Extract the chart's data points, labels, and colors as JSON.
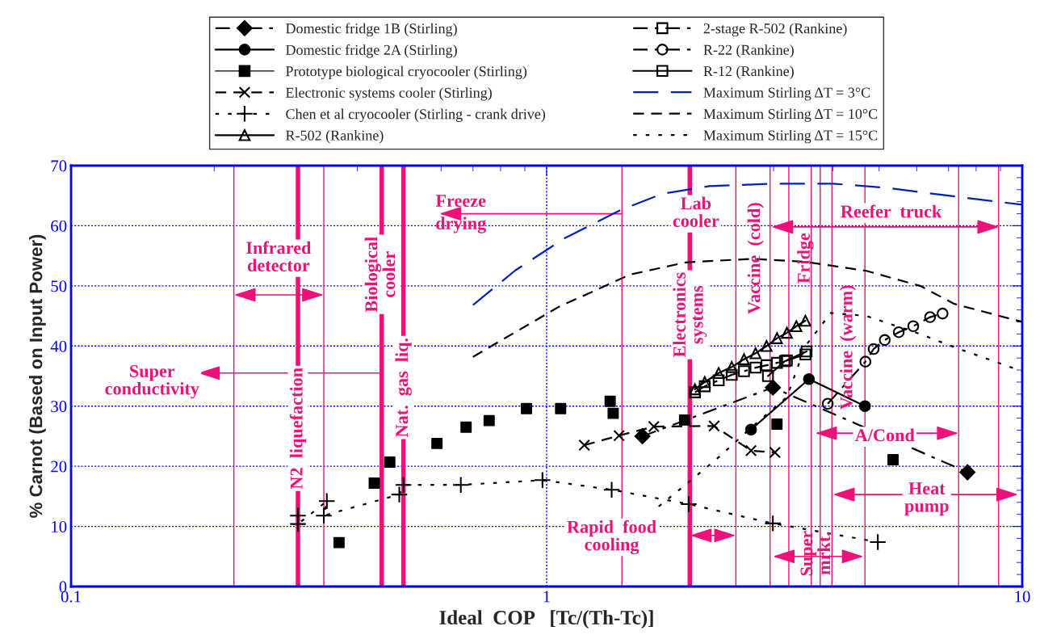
{
  "chart_data": {
    "type": "line",
    "xlabel": "Ideal  COP   [Tc/(Th-Tc)]",
    "ylabel": "% Carnot (Based on Input Power)",
    "log": "x",
    "xlim": [
      0.1,
      10
    ],
    "xticks": [
      0.1,
      1,
      10
    ],
    "ylim": [
      0,
      70
    ],
    "yticks": [
      0,
      10,
      20,
      30,
      40,
      50,
      60,
      70
    ],
    "grid": true,
    "legend": "top",
    "series": [
      {
        "name": "Domestic fridge 1B (Stirling)",
        "color": "#000000",
        "marker": "diamond",
        "line_style": "dashdot",
        "x": [
          1.59,
          2.99,
          7.67
        ],
        "values": [
          25.0,
          33.1,
          19.0
        ]
      },
      {
        "name": "Domestic fridge 2A (Stirling)",
        "color": "#000000",
        "marker": "circle",
        "line_style": "solid",
        "x": [
          2.69,
          3.56,
          4.67
        ],
        "values": [
          26.1,
          34.5,
          30.0
        ]
      },
      {
        "name": "Prototype biological cryocooler (Stirling)",
        "type": "scatter",
        "color": "#000000",
        "marker": "square",
        "x": [
          0.366,
          0.434,
          0.468,
          0.588,
          0.677,
          0.757,
          0.907,
          1.07,
          1.36,
          1.38,
          1.95,
          3.05,
          5.35
        ],
        "values": [
          7.3,
          17.2,
          20.7,
          23.8,
          26.5,
          27.6,
          29.6,
          29.6,
          30.8,
          28.8,
          27.7,
          27.0,
          21.1
        ]
      },
      {
        "name": "Electronic systems cooler (Stirling)",
        "color": "#000000",
        "marker": "cross",
        "line_style": "dashed",
        "x": [
          1.2,
          1.42,
          1.68,
          2.25,
          2.69,
          3.02
        ],
        "values": [
          23.5,
          25.1,
          26.6,
          26.7,
          22.6,
          22.3
        ]
      },
      {
        "name": "Chen et al cryocooler (Stirling - crank drive)",
        "color": "#000000",
        "marker": "plus",
        "line_style": "dotted",
        "x": [
          0.3,
          0.3,
          0.345,
          0.34,
          0.49,
          0.5,
          0.66,
          0.98,
          1.37,
          1.99,
          2.99,
          4.97
        ],
        "values": [
          11.8,
          10.4,
          14.2,
          11.8,
          15.3,
          16.9,
          16.9,
          17.7,
          16.1,
          13.7,
          10.5,
          7.4
        ]
      },
      {
        "name": "R-502 (Rankine)",
        "color": "#000000",
        "marker": "triangle",
        "line_style": "solid",
        "x": [
          2.05,
          2.15,
          2.3,
          2.45,
          2.6,
          2.75,
          2.9,
          3.05,
          3.2,
          3.35,
          3.5
        ],
        "values": [
          32.8,
          34.0,
          35.5,
          36.5,
          37.8,
          38.8,
          40.0,
          41.3,
          42.2,
          43.3,
          44.2
        ]
      },
      {
        "name": "2-stage R-502 (Rankine)",
        "color": "#000000",
        "marker": "square",
        "line_style": "dashdot",
        "x": [
          2.05,
          2.15,
          2.3,
          2.45,
          2.6,
          2.75,
          2.9,
          3.05,
          3.2,
          3.5
        ],
        "values": [
          32.3,
          33.3,
          34.3,
          35.2,
          35.8,
          36.4,
          36.8,
          37.2,
          37.6,
          38.6
        ]
      },
      {
        "name": "R-22 (Rankine)",
        "color": "#000000",
        "marker": "circle",
        "line_style": "dashdot",
        "x": [
          3.9,
          4.68,
          4.87,
          5.14,
          5.5,
          5.9,
          6.4,
          6.8
        ],
        "values": [
          30.4,
          37.4,
          39.5,
          41.0,
          42.3,
          43.3,
          44.8,
          45.4
        ]
      },
      {
        "name": "R-12 (Rankine)",
        "color": "#000000",
        "marker": "square",
        "line_style": "solid",
        "x": [
          2.92,
          3.17,
          3.52
        ],
        "values": [
          35.0,
          37.5,
          39.1
        ]
      },
      {
        "name": "Maximum Stirling ΔT = 3°C",
        "color": "#0022bb",
        "marker": "none",
        "line_style": "longdash",
        "x": [
          0.7,
          0.86,
          1.09,
          1.43,
          1.75,
          2.2,
          3.0,
          4.0,
          5.2,
          7.0,
          10
        ],
        "values": [
          46.8,
          52.6,
          57.9,
          62.6,
          65.3,
          66.6,
          67.0,
          67.0,
          66.3,
          65.0,
          63.5
        ]
      },
      {
        "name": "Maximum Stirling ΔT = 10°C",
        "color": "#000000",
        "marker": "none",
        "line_style": "dashed",
        "x": [
          0.7,
          1.06,
          1.5,
          1.96,
          2.7,
          3.5,
          4.7,
          6.1,
          7.2,
          10
        ],
        "values": [
          38.2,
          46.5,
          51.9,
          53.9,
          54.5,
          54.0,
          52.5,
          50.0,
          47.0,
          44.0
        ]
      },
      {
        "name": "Maximum Stirling ΔT = 15°C",
        "color": "#000000",
        "marker": "none",
        "line_style": "dotted",
        "x": [
          1.72,
          2.0,
          2.3,
          2.7,
          3.2,
          3.5,
          3.96,
          4.7,
          6.1,
          7.2,
          10
        ],
        "values": [
          13.3,
          17.5,
          21.5,
          26.5,
          31.5,
          40.0,
          45.5,
          45.0,
          42.0,
          39.8,
          35.8
        ]
      }
    ],
    "ref_lines": [
      {
        "axis": "x",
        "value": 0.3,
        "label": "N2  liquefaction",
        "color": "#ee1177"
      },
      {
        "axis": "x",
        "value": 0.45,
        "label": "Biological\ncooler",
        "color": "#ee1177"
      },
      {
        "axis": "x",
        "value": 0.5,
        "label": "Nat.  gas  liq.",
        "color": "#ee1177"
      },
      {
        "axis": "x",
        "value": 2.0,
        "label": "Electronics\nsystems",
        "color": "#ee1177"
      },
      {
        "axis": "x",
        "value": 0.22,
        "color": "#ee1177"
      },
      {
        "axis": "x",
        "value": 0.34,
        "color": "#ee1177"
      },
      {
        "axis": "x",
        "value": 1.44,
        "color": "#ee1177"
      },
      {
        "axis": "x",
        "value": 2.5,
        "color": "#ee1177"
      },
      {
        "axis": "x",
        "value": 2.95,
        "color": "#ee1177"
      },
      {
        "axis": "x",
        "value": 3.23,
        "color": "#ee1177"
      },
      {
        "axis": "x",
        "value": 3.6,
        "color": "#ee1177"
      },
      {
        "axis": "x",
        "value": 3.76,
        "color": "#ee1177"
      },
      {
        "axis": "x",
        "value": 3.98,
        "color": "#ee1177"
      },
      {
        "axis": "x",
        "value": 4.67,
        "color": "#ee1177"
      },
      {
        "axis": "x",
        "value": 7.35,
        "color": "#ee1177"
      },
      {
        "axis": "x",
        "value": 8.92,
        "color": "#ee1177"
      }
    ],
    "annotations": [
      {
        "text": "Super\nconductivity",
        "x": 0.45,
        "y": 35.5
      },
      "Infrared\ndetector",
      {
        "text": "Freeze\ndrying",
        "x": 1.44,
        "y": 62.0
      },
      "Lab\ncooler",
      {
        "text": "Reefer  truck",
        "x": 2.97,
        "y": 59.8
      },
      "Vaccine  (cold)",
      "Fridge",
      "Vaccine  (warm)",
      "A/Cond",
      "Heat\npump",
      "Rapid  food\ncooling",
      "Super\nmrkt."
    ]
  }
}
